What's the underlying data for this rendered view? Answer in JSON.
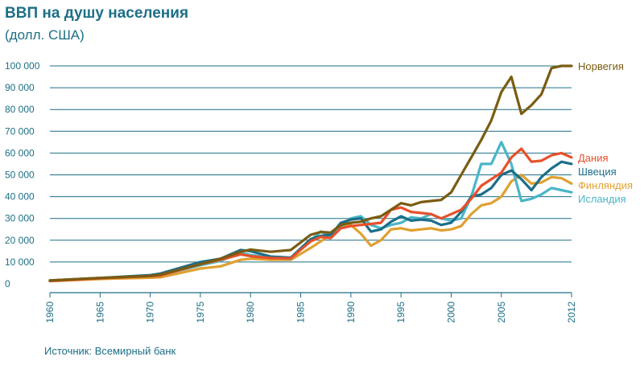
{
  "header": {
    "title": "ВВП на душу населения",
    "subtitle": "(долл. США)"
  },
  "footer": {
    "source": "Источник: Всемирный банк"
  },
  "chart_data": {
    "type": "line",
    "title": "ВВП на душу населения",
    "subtitle": "(долл. США)",
    "xlabel": "",
    "ylabel": "",
    "xlim": [
      1960,
      2012
    ],
    "ylim": [
      0,
      100000
    ],
    "grid": true,
    "legend": "right, inline at line ends",
    "x_ticks": [
      "1960",
      "1965",
      "1970",
      "1975",
      "1980",
      "1985",
      "1990",
      "1995",
      "2000",
      "2005",
      "2012"
    ],
    "x_tick_values": [
      1960,
      1965,
      1970,
      1975,
      1980,
      1985,
      1990,
      1995,
      2000,
      2005,
      2012
    ],
    "y_ticks": [
      "0",
      "10 000",
      "20 000",
      "30 000",
      "40 000",
      "50 000",
      "60 000",
      "70 000",
      "80 000",
      "90 000",
      "100 000"
    ],
    "y_tick_values": [
      0,
      10000,
      20000,
      30000,
      40000,
      50000,
      60000,
      70000,
      80000,
      90000,
      100000
    ],
    "x": [
      1960,
      1965,
      1970,
      1971,
      1975,
      1977,
      1979,
      1980,
      1982,
      1984,
      1986,
      1987,
      1988,
      1989,
      1990,
      1991,
      1992,
      1993,
      1994,
      1995,
      1996,
      1997,
      1998,
      1999,
      2000,
      2001,
      2002,
      2003,
      2004,
      2005,
      2006,
      2007,
      2008,
      2009,
      2010,
      2011,
      2012
    ],
    "series": [
      {
        "name": "Норвегия",
        "color": "#7a5c12",
        "values": [
          1500,
          2700,
          3600,
          4200,
          9000,
          11500,
          14700,
          15700,
          14700,
          15500,
          22500,
          23800,
          23500,
          27000,
          28000,
          28500,
          30000,
          31000,
          34000,
          37000,
          36000,
          37500,
          38000,
          38500,
          42000,
          50000,
          58000,
          66000,
          75000,
          88000,
          95000,
          78000,
          82000,
          87000,
          99000,
          100000,
          100000
        ]
      },
      {
        "name": "Дания",
        "color": "#e8502a",
        "values": [
          1300,
          2500,
          3500,
          3800,
          9000,
          11000,
          13500,
          12700,
          11800,
          11700,
          19500,
          21500,
          21000,
          25500,
          26500,
          27000,
          27500,
          28000,
          34000,
          35000,
          33000,
          32500,
          32000,
          30000,
          32000,
          34000,
          39000,
          45000,
          48000,
          51000,
          58000,
          62000,
          56000,
          56500,
          59000,
          60000,
          58000
        ]
      },
      {
        "name": "Швеция",
        "color": "#1c6e88",
        "values": [
          1500,
          2700,
          4000,
          4700,
          10000,
          11500,
          15500,
          15000,
          12500,
          12000,
          20500,
          22000,
          22500,
          28000,
          29500,
          30000,
          24000,
          25000,
          28500,
          31000,
          29000,
          29500,
          29000,
          27000,
          28000,
          33000,
          40000,
          41000,
          44000,
          50000,
          52000,
          48000,
          43000,
          49000,
          53000,
          56000,
          55000
        ]
      },
      {
        "name": "Финляндия",
        "color": "#e0a030",
        "values": [
          1200,
          2200,
          2800,
          3000,
          7000,
          8000,
          11000,
          11500,
          11000,
          11000,
          16500,
          19500,
          22500,
          25500,
          27000,
          23000,
          17500,
          20000,
          25000,
          25500,
          24500,
          25000,
          25500,
          24500,
          25000,
          26500,
          32000,
          36000,
          37000,
          40000,
          47000,
          50000,
          46000,
          46500,
          49000,
          48500,
          46000
        ]
      },
      {
        "name": "Исландия",
        "color": "#4ab6c8",
        "values": [
          1400,
          2600,
          3700,
          4000,
          8500,
          10500,
          14200,
          13200,
          12000,
          11500,
          20000,
          24000,
          22000,
          26000,
          30000,
          31000,
          27000,
          25500,
          27000,
          28000,
          30500,
          30000,
          32000,
          30000,
          29000,
          30000,
          40000,
          55000,
          55000,
          65000,
          55000,
          38000,
          39000,
          41000,
          44000,
          43000,
          42000
        ]
      }
    ]
  }
}
